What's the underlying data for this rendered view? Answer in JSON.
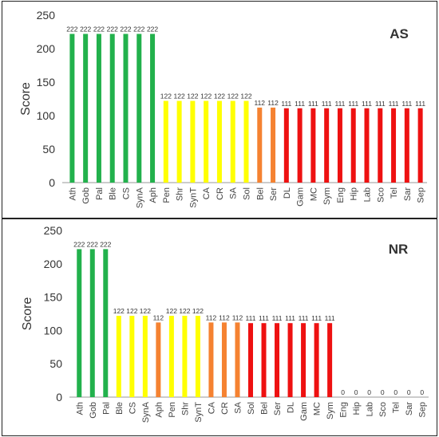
{
  "colors": {
    "green": "#22b14c",
    "yellow": "#ffff00",
    "orange": "#f58231",
    "red": "#ee1111",
    "axis": "#999999"
  },
  "chart_data": [
    {
      "type": "bar",
      "title": "AS",
      "ylabel": "Score",
      "ylim": [
        0,
        250
      ],
      "yticks": [
        0,
        50,
        100,
        150,
        200,
        250
      ],
      "grid": false,
      "categories": [
        "Ath",
        "Gob",
        "Pal",
        "Ble",
        "CS",
        "SynA",
        "Aph",
        "Pen",
        "Shr",
        "SynT",
        "CA",
        "CR",
        "SA",
        "Sol",
        "Bel",
        "Ser",
        "DL",
        "Gam",
        "MC",
        "Sym",
        "Eng",
        "Hip",
        "Lab",
        "Sco",
        "Tel",
        "Sar",
        "Sep"
      ],
      "values": [
        222,
        222,
        222,
        222,
        222,
        222,
        222,
        122,
        122,
        122,
        122,
        122,
        122,
        122,
        112,
        112,
        111,
        111,
        111,
        111,
        111,
        111,
        111,
        111,
        111,
        111,
        111
      ],
      "bar_colors": [
        "green",
        "green",
        "green",
        "green",
        "green",
        "green",
        "green",
        "yellow",
        "yellow",
        "yellow",
        "yellow",
        "yellow",
        "yellow",
        "yellow",
        "orange",
        "orange",
        "red",
        "red",
        "red",
        "red",
        "red",
        "red",
        "red",
        "red",
        "red",
        "red",
        "red"
      ]
    },
    {
      "type": "bar",
      "title": "NR",
      "ylabel": "Score",
      "ylim": [
        0,
        250
      ],
      "yticks": [
        0,
        50,
        100,
        150,
        200,
        250
      ],
      "grid": false,
      "categories": [
        "Ath",
        "Gob",
        "Pal",
        "Ble",
        "CS",
        "SynA",
        "Aph",
        "Pen",
        "Shr",
        "SynT",
        "CA",
        "CR",
        "SA",
        "Sol",
        "Bel",
        "Ser",
        "DL",
        "Gam",
        "MC",
        "Sym",
        "Eng",
        "Hip",
        "Lab",
        "Sco",
        "Tel",
        "Sar",
        "Sep"
      ],
      "values": [
        222,
        222,
        222,
        122,
        122,
        122,
        112,
        122,
        122,
        122,
        112,
        112,
        112,
        111,
        111,
        111,
        111,
        111,
        111,
        111,
        0,
        0,
        0,
        0,
        0,
        0,
        0
      ],
      "bar_colors": [
        "green",
        "green",
        "green",
        "yellow",
        "yellow",
        "yellow",
        "orange",
        "yellow",
        "yellow",
        "yellow",
        "orange",
        "orange",
        "orange",
        "red",
        "red",
        "red",
        "red",
        "red",
        "red",
        "red",
        "red",
        "red",
        "red",
        "red",
        "red",
        "red",
        "red"
      ]
    }
  ]
}
